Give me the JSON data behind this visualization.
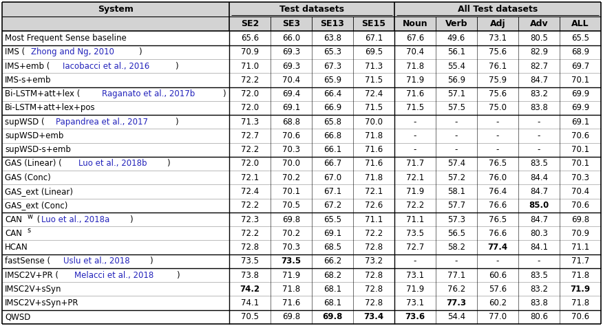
{
  "groups": [
    {
      "rows": [
        {
          "parts": [
            [
              "Most Frequent Sense baseline",
              "black",
              false,
              false
            ]
          ],
          "values": [
            "65.6",
            "66.0",
            "63.8",
            "67.1",
            "67.6",
            "49.6",
            "73.1",
            "80.5",
            "65.5"
          ],
          "bold_vals": [
            0,
            0,
            0,
            0,
            0,
            0,
            0,
            0,
            0
          ]
        }
      ],
      "sep": true
    },
    {
      "rows": [
        {
          "parts": [
            [
              "IMS (",
              "black",
              false,
              false
            ],
            [
              "Zhong and Ng, 2010",
              "#2222bb",
              false,
              false
            ],
            [
              ")",
              "black",
              false,
              false
            ]
          ],
          "values": [
            "70.9",
            "69.3",
            "65.3",
            "69.5",
            "70.4",
            "56.1",
            "75.6",
            "82.9",
            "68.9"
          ],
          "bold_vals": [
            0,
            0,
            0,
            0,
            0,
            0,
            0,
            0,
            0
          ]
        },
        {
          "parts": [
            [
              "IMS+emb (",
              "black",
              false,
              false
            ],
            [
              "Iacobacci et al., 2016",
              "#2222bb",
              false,
              false
            ],
            [
              ")",
              "black",
              false,
              false
            ]
          ],
          "values": [
            "71.0",
            "69.3",
            "67.3",
            "71.3",
            "71.8",
            "55.4",
            "76.1",
            "82.7",
            "69.7"
          ],
          "bold_vals": [
            0,
            0,
            0,
            0,
            0,
            0,
            0,
            0,
            0
          ]
        },
        {
          "parts": [
            [
              "IMS-s+emb",
              "black",
              false,
              false
            ]
          ],
          "values": [
            "72.2",
            "70.4",
            "65.9",
            "71.5",
            "71.9",
            "56.9",
            "75.9",
            "84.7",
            "70.1"
          ],
          "bold_vals": [
            0,
            0,
            0,
            0,
            0,
            0,
            0,
            0,
            0
          ]
        }
      ],
      "sep": true
    },
    {
      "rows": [
        {
          "parts": [
            [
              "Bi-LSTM+att+lex (",
              "black",
              false,
              false
            ],
            [
              "Raganato et al., 2017b",
              "#2222bb",
              false,
              false
            ],
            [
              ")",
              "black",
              false,
              false
            ]
          ],
          "values": [
            "72.0",
            "69.4",
            "66.4",
            "72.4",
            "71.6",
            "57.1",
            "75.6",
            "83.2",
            "69.9"
          ],
          "bold_vals": [
            0,
            0,
            0,
            0,
            0,
            0,
            0,
            0,
            0
          ]
        },
        {
          "parts": [
            [
              "Bi-LSTM+att+lex+pos",
              "black",
              false,
              false
            ]
          ],
          "values": [
            "72.0",
            "69.1",
            "66.9",
            "71.5",
            "71.5",
            "57.5",
            "75.0",
            "83.8",
            "69.9"
          ],
          "bold_vals": [
            0,
            0,
            0,
            0,
            0,
            0,
            0,
            0,
            0
          ]
        }
      ],
      "sep": true
    },
    {
      "rows": [
        {
          "parts": [
            [
              "supWSD (",
              "black",
              false,
              false
            ],
            [
              "Papandrea et al., 2017",
              "#2222bb",
              false,
              false
            ],
            [
              ")",
              "black",
              false,
              false
            ]
          ],
          "values": [
            "71.3",
            "68.8",
            "65.8",
            "70.0",
            "-",
            "-",
            "-",
            "-",
            "69.1"
          ],
          "bold_vals": [
            0,
            0,
            0,
            0,
            0,
            0,
            0,
            0,
            0
          ]
        },
        {
          "parts": [
            [
              "supWSD+emb",
              "black",
              false,
              false
            ]
          ],
          "values": [
            "72.7",
            "70.6",
            "66.8",
            "71.8",
            "-",
            "-",
            "-",
            "-",
            "70.6"
          ],
          "bold_vals": [
            0,
            0,
            0,
            0,
            0,
            0,
            0,
            0,
            0
          ]
        },
        {
          "parts": [
            [
              "supWSD-s+emb",
              "black",
              false,
              false
            ]
          ],
          "values": [
            "72.2",
            "70.3",
            "66.1",
            "71.6",
            "-",
            "-",
            "-",
            "-",
            "70.1"
          ],
          "bold_vals": [
            0,
            0,
            0,
            0,
            0,
            0,
            0,
            0,
            0
          ]
        }
      ],
      "sep": true
    },
    {
      "rows": [
        {
          "parts": [
            [
              "GAS (Linear) (",
              "black",
              false,
              false
            ],
            [
              "Luo et al., 2018b",
              "#2222bb",
              false,
              false
            ],
            [
              ")",
              "black",
              false,
              false
            ]
          ],
          "values": [
            "72.0",
            "70.0",
            "66.7",
            "71.6",
            "71.7",
            "57.4",
            "76.5",
            "83.5",
            "70.1"
          ],
          "bold_vals": [
            0,
            0,
            0,
            0,
            0,
            0,
            0,
            0,
            0
          ]
        },
        {
          "parts": [
            [
              "GAS (Conc)",
              "black",
              false,
              false
            ]
          ],
          "values": [
            "72.1",
            "70.2",
            "67.0",
            "71.8",
            "72.1",
            "57.2",
            "76.0",
            "84.4",
            "70.3"
          ],
          "bold_vals": [
            0,
            0,
            0,
            0,
            0,
            0,
            0,
            0,
            0
          ]
        },
        {
          "parts": [
            [
              "GAS_ext (Linear)",
              "black",
              false,
              false
            ]
          ],
          "values": [
            "72.4",
            "70.1",
            "67.1",
            "72.1",
            "71.9",
            "58.1",
            "76.4",
            "84.7",
            "70.4"
          ],
          "bold_vals": [
            0,
            0,
            0,
            0,
            0,
            0,
            0,
            0,
            0
          ]
        },
        {
          "parts": [
            [
              "GAS_ext (Conc)",
              "black",
              false,
              false
            ]
          ],
          "values": [
            "72.2",
            "70.5",
            "67.2",
            "72.6",
            "72.2",
            "57.7",
            "76.6",
            "85.0",
            "70.6"
          ],
          "bold_vals": [
            0,
            0,
            0,
            0,
            0,
            0,
            0,
            0,
            0
          ],
          "bold_specific": {
            "7": true
          }
        }
      ],
      "sep": true
    },
    {
      "rows": [
        {
          "parts": [
            [
              "CAN",
              "black",
              false,
              false
            ],
            [
              "w",
              "black",
              false,
              true
            ],
            [
              " (",
              "black",
              false,
              false
            ],
            [
              "Luo et al., 2018a",
              "#2222bb",
              false,
              false
            ],
            [
              ")",
              "black",
              false,
              false
            ]
          ],
          "values": [
            "72.3",
            "69.8",
            "65.5",
            "71.1",
            "71.1",
            "57.3",
            "76.5",
            "84.7",
            "69.8"
          ],
          "bold_vals": [
            0,
            0,
            0,
            0,
            0,
            0,
            0,
            0,
            0
          ]
        },
        {
          "parts": [
            [
              "CAN",
              "black",
              false,
              false
            ],
            [
              "s",
              "black",
              false,
              true
            ]
          ],
          "values": [
            "72.2",
            "70.2",
            "69.1",
            "72.2",
            "73.5",
            "56.5",
            "76.6",
            "80.3",
            "70.9"
          ],
          "bold_vals": [
            0,
            0,
            0,
            0,
            0,
            0,
            0,
            0,
            0
          ]
        },
        {
          "parts": [
            [
              "HCAN",
              "black",
              false,
              false
            ]
          ],
          "values": [
            "72.8",
            "70.3",
            "68.5",
            "72.8",
            "72.7",
            "58.2",
            "77.4",
            "84.1",
            "71.1"
          ],
          "bold_vals": [
            0,
            0,
            0,
            0,
            0,
            0,
            0,
            0,
            0
          ],
          "bold_specific": {
            "6": true
          }
        }
      ],
      "sep": true
    },
    {
      "rows": [
        {
          "parts": [
            [
              "fastSense (",
              "black",
              false,
              false
            ],
            [
              "Uslu et al., 2018",
              "#2222bb",
              false,
              false
            ],
            [
              ")",
              "black",
              false,
              false
            ]
          ],
          "values": [
            "73.5",
            "73.5",
            "66.2",
            "73.2",
            "-",
            "-",
            "-",
            "-",
            "71.7"
          ],
          "bold_vals": [
            0,
            1,
            0,
            0,
            0,
            0,
            0,
            0,
            0
          ]
        }
      ],
      "sep": true
    },
    {
      "rows": [
        {
          "parts": [
            [
              "IMSC2V+PR (",
              "black",
              false,
              false
            ],
            [
              "Melacci et al., 2018",
              "#2222bb",
              false,
              false
            ],
            [
              ")",
              "black",
              false,
              false
            ]
          ],
          "values": [
            "73.8",
            "71.9",
            "68.2",
            "72.8",
            "73.1",
            "77.1",
            "60.6",
            "83.5",
            "71.8"
          ],
          "bold_vals": [
            0,
            0,
            0,
            0,
            0,
            0,
            0,
            0,
            0
          ]
        },
        {
          "parts": [
            [
              "IMSC2V+sSyn",
              "black",
              false,
              false
            ]
          ],
          "values": [
            "74.2",
            "71.8",
            "68.1",
            "72.8",
            "71.9",
            "76.2",
            "57.6",
            "83.2",
            "71.9"
          ],
          "bold_vals": [
            1,
            0,
            0,
            0,
            0,
            0,
            0,
            0,
            1
          ]
        },
        {
          "parts": [
            [
              "IMSC2V+sSyn+PR",
              "black",
              false,
              false
            ]
          ],
          "values": [
            "74.1",
            "71.6",
            "68.1",
            "72.8",
            "73.1",
            "77.3",
            "60.2",
            "83.8",
            "71.8"
          ],
          "bold_vals": [
            0,
            0,
            0,
            0,
            0,
            1,
            0,
            0,
            0
          ]
        }
      ],
      "sep": true
    },
    {
      "rows": [
        {
          "parts": [
            [
              "QWSD",
              "black",
              false,
              false
            ]
          ],
          "values": [
            "70.5",
            "69.8",
            "69.8",
            "73.4",
            "73.6",
            "54.4",
            "77.0",
            "80.6",
            "70.6"
          ],
          "bold_vals": [
            0,
            0,
            1,
            1,
            1,
            0,
            0,
            0,
            0
          ]
        }
      ],
      "sep": false
    }
  ],
  "col_headers": [
    "SE2",
    "SE3",
    "SE13",
    "SE15",
    "Noun",
    "Verb",
    "Adj",
    "Adv",
    "ALL"
  ],
  "header_color": "#d3d3d3",
  "data_fontsize": 8.5,
  "header_fontsize": 9.0
}
